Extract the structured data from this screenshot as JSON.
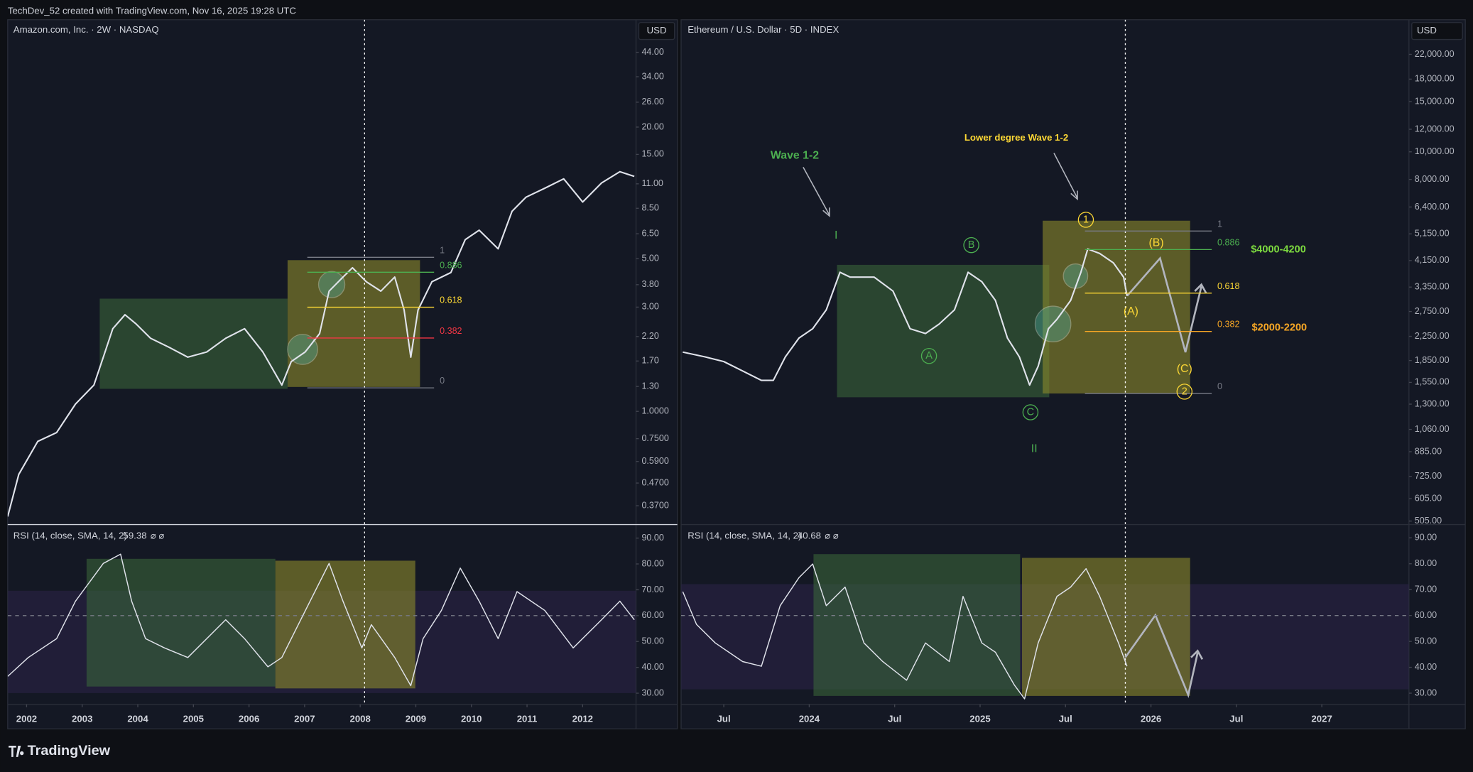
{
  "header": {
    "title": "TechDev_52 created with TradingView.com, Nov 16, 2025 19:28 UTC"
  },
  "footer": {
    "logo": "TradingView"
  },
  "chart_data": [
    {
      "type": "line",
      "title": "Amazon.com, Inc. · 2W · NASDAQ",
      "currency": "USD",
      "log_scale": true,
      "color": "#e0e3eb",
      "x": [
        2001.66,
        2001.86,
        2002.2,
        2002.54,
        2002.88,
        2003.21,
        2003.38,
        2003.55,
        2003.77,
        2003.97,
        2004.23,
        2004.57,
        2004.9,
        2005.24,
        2005.58,
        2005.92,
        2006.25,
        2006.59,
        2006.76,
        2007.01,
        2007.27,
        2007.44,
        2007.69,
        2007.86,
        2008.11,
        2008.37,
        2008.62,
        2008.79,
        2008.91,
        2009.04,
        2009.29,
        2009.63,
        2009.89,
        2010.14,
        2010.48,
        2010.73,
        2010.98,
        2011.32,
        2011.66,
        2012.0,
        2012.34,
        2012.67,
        2012.93
      ],
      "values": [
        0.33,
        0.515,
        0.729,
        0.8,
        1.08,
        1.32,
        1.77,
        2.39,
        2.77,
        2.51,
        2.16,
        1.96,
        1.77,
        1.87,
        2.16,
        2.39,
        1.87,
        1.32,
        1.69,
        1.87,
        2.27,
        3.55,
        4.12,
        4.54,
        3.92,
        3.55,
        4.12,
        2.91,
        1.77,
        2.91,
        3.92,
        4.32,
        6.11,
        6.75,
        5.54,
        8.23,
        9.55,
        10.5,
        11.6,
        9.08,
        11.1,
        12.5,
        11.9
      ],
      "xlim": [
        2001.66,
        2012.96
      ],
      "xticks": [
        2002,
        2003,
        2004,
        2005,
        2006,
        2007,
        2008,
        2009,
        2010,
        2011,
        2012
      ],
      "ylim": [
        0.305,
        62
      ],
      "yticks": [
        {
          "value": 44,
          "label": "44.00"
        },
        {
          "value": 34,
          "label": "34.00"
        },
        {
          "value": 26,
          "label": "26.00"
        },
        {
          "value": 20,
          "label": "20.00"
        },
        {
          "value": 15,
          "label": "15.00"
        },
        {
          "value": 11,
          "label": "11.00"
        },
        {
          "value": 8.5,
          "label": "8.50"
        },
        {
          "value": 6.5,
          "label": "6.50"
        },
        {
          "value": 5,
          "label": "5.00"
        },
        {
          "value": 3.8,
          "label": "3.80"
        },
        {
          "value": 3,
          "label": "3.00"
        },
        {
          "value": 2.2,
          "label": "2.20"
        },
        {
          "value": 1.7,
          "label": "1.70"
        },
        {
          "value": 1.3,
          "label": "1.30"
        },
        {
          "value": 1,
          "label": "1.0000"
        },
        {
          "value": 0.75,
          "label": "0.7500"
        },
        {
          "value": 0.59,
          "label": "0.5900"
        },
        {
          "value": 0.47,
          "label": "0.4700"
        },
        {
          "value": 0.37,
          "label": "0.3700"
        }
      ],
      "fib": {
        "levels": [
          1,
          0.886,
          0.618,
          0.382,
          0
        ],
        "colors": [
          "#787b86",
          "#4caf50",
          "#fdd835",
          "#f23645",
          "#787b86"
        ]
      }
    },
    {
      "type": "line",
      "title": "RSI (14, close, SMA, 14, 2)",
      "last_value": 59.38,
      "flags": "⌀ ⌀",
      "color": "#e0e3eb",
      "x": [
        2001.66,
        2002.03,
        2002.54,
        2002.88,
        2003.13,
        2003.38,
        2003.69,
        2003.89,
        2004.14,
        2004.48,
        2004.9,
        2005.58,
        2005.92,
        2006.34,
        2006.59,
        2006.93,
        2007.27,
        2007.44,
        2007.69,
        2008.03,
        2008.2,
        2008.62,
        2008.91,
        2009.13,
        2009.46,
        2009.8,
        2010.14,
        2010.48,
        2010.82,
        2011.32,
        2011.83,
        2012.34,
        2012.67,
        2012.93
      ],
      "values": [
        36.5,
        43.8,
        51.1,
        65.6,
        72.9,
        80.2,
        83.8,
        65.6,
        51.1,
        47.5,
        43.8,
        58.4,
        51.1,
        40.2,
        43.8,
        58.4,
        72.9,
        80.2,
        65.6,
        47.5,
        56.5,
        43.8,
        32.9,
        51.1,
        62.0,
        78.4,
        65.6,
        51.1,
        69.3,
        62.0,
        47.5,
        58.4,
        65.6,
        58.4
      ],
      "xlim": [
        2001.66,
        2012.96
      ],
      "ylim": [
        26.4,
        94.7
      ],
      "yticks": [
        {
          "value": 90,
          "label": "90.00"
        },
        {
          "value": 80,
          "label": "80.00"
        },
        {
          "value": 70,
          "label": "70.00"
        },
        {
          "value": 60,
          "label": "60.00"
        },
        {
          "value": 50,
          "label": "50.00"
        },
        {
          "value": 40,
          "label": "40.00"
        },
        {
          "value": 30,
          "label": "30.00"
        }
      ]
    },
    {
      "type": "line",
      "title": "Ethereum / U.S. Dollar · 5D · INDEX",
      "currency": "USD",
      "log_scale": true,
      "color": "#e0e3eb",
      "x": [
        2023.26,
        2023.39,
        2023.5,
        2023.61,
        2023.72,
        2023.79,
        2023.86,
        2023.94,
        2024.02,
        2024.1,
        2024.18,
        2024.24,
        2024.38,
        2024.49,
        2024.59,
        2024.68,
        2024.76,
        2024.85,
        2024.93,
        2025.01,
        2025.09,
        2025.16,
        2025.23,
        2025.29,
        2025.34,
        2025.4,
        2025.45,
        2025.53,
        2025.59,
        2025.63,
        2025.7,
        2025.78,
        2025.84,
        2025.86
      ],
      "values": [
        1980,
        1905,
        1834,
        1700,
        1576,
        1576,
        1905,
        2218,
        2393,
        2786,
        3776,
        3631,
        3631,
        3243,
        2393,
        2301,
        2483,
        2786,
        3776,
        3499,
        3006,
        2218,
        1905,
        1517,
        1766,
        2393,
        2582,
        3006,
        3776,
        4560,
        4395,
        4074,
        3631,
        3119
      ],
      "xlim": [
        2023.25,
        2027.51
      ],
      "xticks": [
        {
          "value": 2023.5,
          "label": "Jul"
        },
        2024,
        {
          "value": 2024.5,
          "label": "Jul"
        },
        2025,
        {
          "value": 2025.5,
          "label": "Jul"
        },
        2026,
        {
          "value": 2026.5,
          "label": "Jul"
        },
        2027
      ],
      "ylim": [
        493,
        29100
      ],
      "yticks": [
        {
          "value": 22000,
          "label": "22,000.00"
        },
        {
          "value": 18000,
          "label": "18,000.00"
        },
        {
          "value": 15000,
          "label": "15,000.00"
        },
        {
          "value": 12000,
          "label": "12,000.00"
        },
        {
          "value": 10000,
          "label": "10,000.00"
        },
        {
          "value": 8000,
          "label": "8,000.00"
        },
        {
          "value": 6400,
          "label": "6,400.00"
        },
        {
          "value": 5150,
          "label": "5,150.00"
        },
        {
          "value": 4150,
          "label": "4,150.00"
        },
        {
          "value": 3350,
          "label": "3,350.00"
        },
        {
          "value": 2750,
          "label": "2,750.00"
        },
        {
          "value": 2250,
          "label": "2,250.00"
        },
        {
          "value": 1850,
          "label": "1,850.00"
        },
        {
          "value": 1550,
          "label": "1,550.00"
        },
        {
          "value": 1300,
          "label": "1,300.00"
        },
        {
          "value": 1060,
          "label": "1,060.00"
        },
        {
          "value": 885,
          "label": "885.00"
        },
        {
          "value": 725,
          "label": "725.00"
        },
        {
          "value": 605,
          "label": "605.00"
        },
        {
          "value": 505,
          "label": "505.00"
        }
      ],
      "fib": {
        "levels": [
          1,
          0.886,
          0.618,
          0.382,
          0
        ],
        "colors": [
          "#787b86",
          "#4caf50",
          "#fdd835",
          "#f9a825",
          "#787b86"
        ]
      },
      "annotations": {
        "wave": "Wave 1-2",
        "lower": "Lower degree Wave 1-2",
        "i": "I",
        "ii": "II",
        "a": "A",
        "b": "B",
        "c": "C",
        "w1": "1",
        "w2": "2",
        "pa": "(A)",
        "pb": "(B)",
        "pc": "(C)",
        "target_high": "$4000-4200",
        "target_low": "$2000-2200"
      }
    },
    {
      "type": "line",
      "title": "RSI (14, close, SMA, 14, 2)",
      "last_value": 40.68,
      "flags": "⌀ ⌀",
      "color": "#e0e3eb",
      "x": [
        2023.26,
        2023.34,
        2023.45,
        2023.61,
        2023.72,
        2023.83,
        2023.94,
        2024.02,
        2024.1,
        2024.21,
        2024.32,
        2024.43,
        2024.57,
        2024.68,
        2024.82,
        2024.9,
        2025.01,
        2025.09,
        2025.2,
        2025.26,
        2025.34,
        2025.45,
        2025.53,
        2025.62,
        2025.7,
        2025.81,
        2025.86
      ],
      "values": [
        69.2,
        56.6,
        49.4,
        42.2,
        40.4,
        63.8,
        74.6,
        79.9,
        63.8,
        71.0,
        49.4,
        42.2,
        35.0,
        49.4,
        42.2,
        67.4,
        49.4,
        45.8,
        33.2,
        27.8,
        49.4,
        67.4,
        71.0,
        78.1,
        67.4,
        49.4,
        40.4
      ],
      "xlim": [
        2023.25,
        2027.51
      ],
      "ylim": [
        26.4,
        94.6
      ],
      "yticks": [
        {
          "value": 90,
          "label": "90.00"
        },
        {
          "value": 80,
          "label": "80.00"
        },
        {
          "value": 70,
          "label": "70.00"
        },
        {
          "value": 60,
          "label": "60.00"
        },
        {
          "value": 50,
          "label": "50.00"
        },
        {
          "value": 40,
          "label": "40.00"
        },
        {
          "value": 30,
          "label": "30.00"
        }
      ]
    }
  ]
}
